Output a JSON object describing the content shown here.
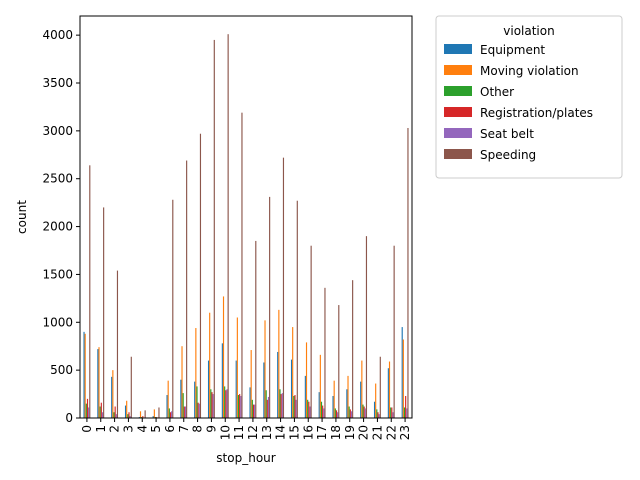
{
  "chart_data": {
    "type": "bar",
    "xlabel": "stop_hour",
    "ylabel": "count",
    "ylim": [
      0,
      4200
    ],
    "yticks": [
      0,
      500,
      1000,
      1500,
      2000,
      2500,
      3000,
      3500,
      4000
    ],
    "categories": [
      "0",
      "1",
      "2",
      "3",
      "4",
      "5",
      "6",
      "7",
      "8",
      "9",
      "10",
      "11",
      "12",
      "13",
      "14",
      "15",
      "16",
      "17",
      "18",
      "19",
      "20",
      "21",
      "22",
      "23"
    ],
    "legend": {
      "title": "violation",
      "placement": "outside-right"
    },
    "grid": false,
    "series": [
      {
        "name": "Equipment",
        "color": "#1f77b4",
        "values": [
          900,
          720,
          430,
          130,
          10,
          20,
          240,
          400,
          380,
          600,
          780,
          600,
          320,
          580,
          690,
          610,
          440,
          270,
          230,
          300,
          380,
          170,
          520,
          950
        ]
      },
      {
        "name": "Moving violation",
        "color": "#ff7f0e",
        "values": [
          880,
          740,
          500,
          180,
          70,
          90,
          390,
          750,
          940,
          1100,
          1270,
          1050,
          710,
          1020,
          1130,
          950,
          790,
          660,
          390,
          440,
          600,
          360,
          590,
          820
        ]
      },
      {
        "name": "Other",
        "color": "#2ca02c",
        "values": [
          150,
          120,
          60,
          40,
          10,
          10,
          100,
          260,
          330,
          300,
          330,
          240,
          190,
          290,
          300,
          230,
          190,
          170,
          100,
          120,
          140,
          90,
          110,
          110
        ]
      },
      {
        "name": "Registration/plates",
        "color": "#d62728",
        "values": [
          200,
          160,
          120,
          60,
          20,
          10,
          60,
          120,
          160,
          270,
          290,
          250,
          140,
          190,
          250,
          240,
          170,
          130,
          80,
          90,
          120,
          60,
          110,
          230
        ]
      },
      {
        "name": "Seat belt",
        "color": "#9467bd",
        "values": [
          110,
          60,
          40,
          20,
          5,
          5,
          70,
          120,
          150,
          250,
          300,
          230,
          140,
          220,
          260,
          190,
          120,
          100,
          60,
          70,
          100,
          40,
          60,
          100
        ]
      },
      {
        "name": "Speeding",
        "color": "#8c564b",
        "values": [
          2640,
          2200,
          1540,
          640,
          80,
          110,
          2280,
          2690,
          2970,
          3950,
          4010,
          3190,
          1850,
          2310,
          2720,
          2270,
          1800,
          1360,
          1180,
          1440,
          1900,
          640,
          1800,
          3030
        ]
      }
    ]
  }
}
